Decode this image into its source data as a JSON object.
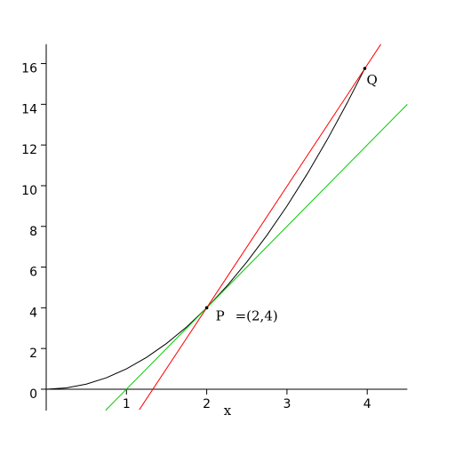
{
  "chart_data": {
    "type": "line",
    "xlim": [
      0,
      4.5
    ],
    "ylim": [
      -1.05,
      16.95
    ],
    "xticks": [
      1,
      2,
      3,
      4
    ],
    "yticks": [
      0,
      2,
      4,
      6,
      8,
      10,
      12,
      14,
      16
    ],
    "xlabel": "x",
    "series": [
      {
        "color": "#000000",
        "x": [
          0,
          0.25,
          0.5,
          0.75,
          1,
          1.25,
          1.5,
          1.75,
          2,
          2.25,
          2.5,
          2.75,
          3,
          3.25,
          3.5,
          3.75,
          3.97
        ],
        "values": [
          0,
          0.0625,
          0.25,
          0.5625,
          1,
          1.5625,
          2.25,
          3.0625,
          4,
          5.0625,
          6.25,
          7.5625,
          9,
          10.5625,
          12.25,
          14.0625,
          15.76
        ]
      },
      {
        "color": "#00cc00",
        "x": [
          0.74,
          4.5
        ],
        "values": [
          -1.04,
          14
        ]
      },
      {
        "color": "#ff0000",
        "x": [
          1.16,
          4.17
        ],
        "values": [
          -1.01,
          16.95
        ]
      }
    ],
    "points": [
      {
        "x": 2,
        "y": 4,
        "label": "P",
        "text": "=(2,4)"
      },
      {
        "x": 3.97,
        "y": 15.76,
        "label": "Q"
      }
    ]
  }
}
